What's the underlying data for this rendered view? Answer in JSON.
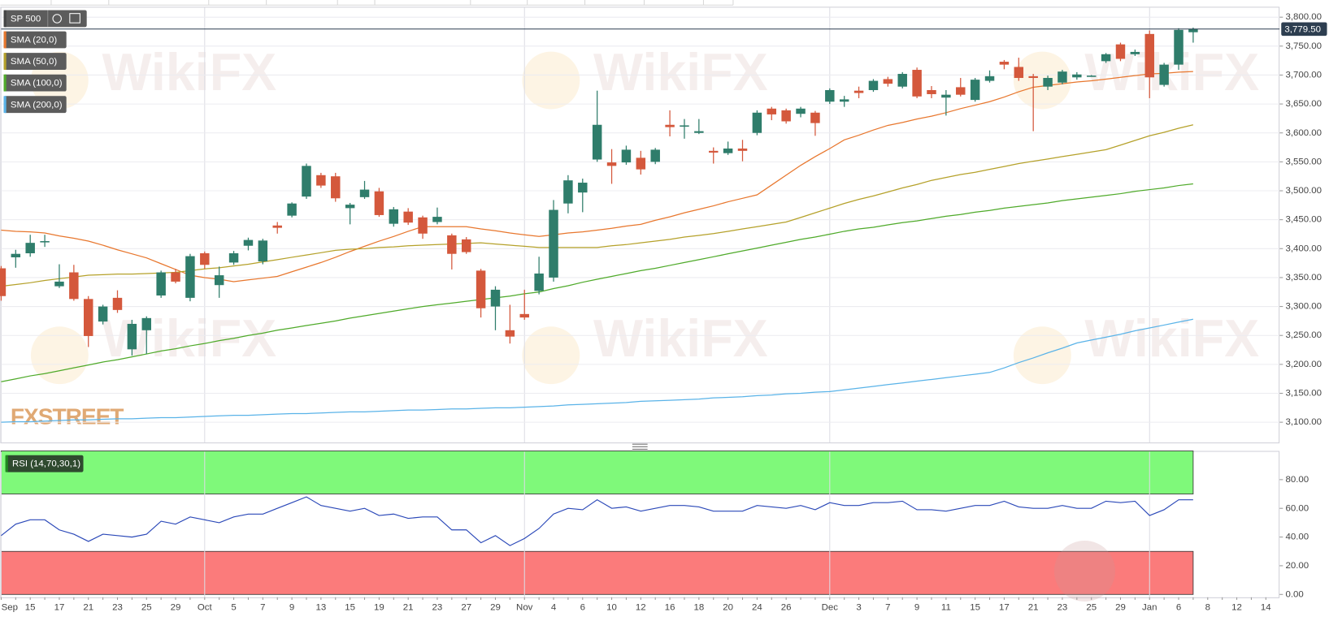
{
  "watermark": "WikiFX",
  "branding": "FXSTREET",
  "chart_data": [
    {
      "type": "candlestick",
      "title": "SP 500",
      "categories": [
        "Sep",
        null,
        "15",
        null,
        "17",
        null,
        "21",
        null,
        "23",
        null,
        "25",
        null,
        "29",
        null,
        "Oct",
        null,
        "5",
        null,
        "7",
        null,
        "9",
        null,
        "13",
        null,
        "15",
        null,
        "19",
        null,
        "21",
        null,
        "23",
        null,
        "27",
        null,
        "29",
        null,
        "Nov",
        null,
        "4",
        null,
        "6",
        null,
        "10",
        null,
        "12",
        null,
        "16",
        null,
        "18",
        null,
        "20",
        null,
        "24",
        null,
        "26",
        null,
        null,
        "Dec",
        null,
        "3",
        null,
        "7",
        null,
        "9",
        null,
        "11",
        null,
        "15",
        null,
        "17",
        null,
        "21",
        null,
        "23",
        null,
        "25",
        null,
        "29",
        null,
        "Jan",
        null,
        "6",
        null,
        "8",
        null,
        "12",
        null,
        "14"
      ],
      "open": [
        3366,
        3385,
        3392,
        3412,
        3335,
        3359,
        3313,
        3274,
        3315,
        3226,
        3259,
        3319,
        3359,
        3315,
        3392,
        3337,
        3376,
        3405,
        3378,
        3440,
        3457,
        3490,
        3527,
        3525,
        3470,
        3489,
        3499,
        3443,
        3464,
        3454,
        3446,
        3423,
        3416,
        3362,
        3300,
        3259,
        3287,
        3327,
        3350,
        3478,
        3497,
        3554,
        3549,
        3549,
        3557,
        3550,
        3614,
        3612,
        3600,
        3569,
        3565,
        3573,
        3600,
        3642,
        3639,
        3633,
        3635,
        3654,
        3654,
        3673,
        3674,
        3693,
        3680,
        3709,
        3674,
        3661,
        3679,
        3657,
        3690,
        3723,
        3714,
        3698,
        3680,
        3687,
        3696,
        3699,
        3724,
        3753,
        3736,
        3771,
        3683,
        3718,
        3774,
        null,
        null,
        null,
        null,
        null
      ],
      "high": [
        3370,
        3398,
        3424,
        3424,
        3373,
        3372,
        3318,
        3303,
        3328,
        3277,
        3283,
        3362,
        3365,
        3391,
        3395,
        3369,
        3396,
        3419,
        3417,
        3446,
        3480,
        3547,
        3531,
        3531,
        3479,
        3517,
        3505,
        3472,
        3470,
        3457,
        3471,
        3426,
        3420,
        3365,
        3335,
        3303,
        3329,
        3386,
        3484,
        3527,
        3521,
        3673,
        3572,
        3578,
        3569,
        3574,
        3639,
        3624,
        3624,
        3575,
        3585,
        3588,
        3639,
        3645,
        3642,
        3645,
        3638,
        3677,
        3664,
        3680,
        3693,
        3697,
        3705,
        3713,
        3681,
        3674,
        3695,
        3695,
        3708,
        3726,
        3730,
        3702,
        3699,
        3709,
        3705,
        3700,
        3738,
        3756,
        3744,
        3777,
        3721,
        3781,
        3782,
        null,
        null,
        null,
        null,
        null
      ],
      "low": [
        3310,
        3367,
        3386,
        3403,
        3332,
        3310,
        3230,
        3269,
        3289,
        3215,
        3218,
        3315,
        3340,
        3309,
        3365,
        3315,
        3372,
        3397,
        3373,
        3426,
        3454,
        3486,
        3505,
        3481,
        3442,
        3486,
        3455,
        3438,
        3441,
        3417,
        3442,
        3364,
        3391,
        3281,
        3259,
        3236,
        3277,
        3321,
        3343,
        3461,
        3463,
        3550,
        3512,
        3545,
        3528,
        3546,
        3594,
        3590,
        3598,
        3547,
        3562,
        3551,
        3596,
        3622,
        3616,
        3627,
        3595,
        3650,
        3645,
        3660,
        3671,
        3680,
        3677,
        3660,
        3660,
        3630,
        3663,
        3654,
        3687,
        3710,
        3690,
        3603,
        3674,
        3684,
        3692,
        3698,
        3721,
        3724,
        3733,
        3660,
        3680,
        3709,
        3756,
        null,
        null,
        null,
        null,
        null
      ],
      "close": [
        3318,
        3391,
        3410,
        3413,
        3343,
        3313,
        3249,
        3300,
        3294,
        3270,
        3280,
        3359,
        3343,
        3387,
        3372,
        3354,
        3392,
        3415,
        3414,
        3436,
        3478,
        3543,
        3509,
        3487,
        3476,
        3502,
        3458,
        3468,
        3445,
        3426,
        3455,
        3391,
        3394,
        3297,
        3329,
        3248,
        3281,
        3357,
        3467,
        3518,
        3514,
        3614,
        3543,
        3571,
        3537,
        3571,
        3610,
        3613,
        3603,
        3566,
        3573,
        3569,
        3635,
        3632,
        3620,
        3642,
        3617,
        3674,
        3658,
        3669,
        3690,
        3685,
        3702,
        3663,
        3667,
        3666,
        3666,
        3692,
        3698,
        3718,
        3695,
        3695,
        3695,
        3706,
        3701,
        3699,
        3736,
        3728,
        3740,
        3696,
        3718,
        3778,
        3779.5,
        null,
        null,
        null,
        null,
        null
      ],
      "up_color": "#2f7d6b",
      "down_color": "#d4583c",
      "overlays": [
        {
          "name": "SMA (20,0)",
          "color": "#e8772e",
          "values": [
            3432,
            3430,
            3429,
            3427,
            3422,
            3418,
            3413,
            3406,
            3398,
            3391,
            3384,
            3374,
            3364,
            3354,
            3350,
            3347,
            3343,
            3346,
            3349,
            3352,
            3360,
            3368,
            3376,
            3385,
            3395,
            3404,
            3413,
            3421,
            3430,
            3438,
            3438,
            3438,
            3438,
            3434,
            3431,
            3427,
            3424,
            3421,
            3424,
            3427,
            3429,
            3432,
            3435,
            3439,
            3442,
            3449,
            3455,
            3462,
            3468,
            3474,
            3481,
            3487,
            3493,
            3510,
            3527,
            3544,
            3559,
            3573,
            3588,
            3596,
            3605,
            3613,
            3618,
            3624,
            3629,
            3635,
            3642,
            3648,
            3654,
            3662,
            3671,
            3679,
            3682,
            3685,
            3688,
            3690,
            3693,
            3696,
            3699,
            3702,
            3703,
            3705,
            3706,
            null,
            null,
            null,
            null,
            null
          ]
        },
        {
          "name": "SMA (50,0)",
          "color": "#b5a12a",
          "values": [
            3335,
            3338,
            3341,
            3345,
            3348,
            3351,
            3354,
            3355,
            3356,
            3356,
            3357,
            3358,
            3359,
            3362,
            3365,
            3367,
            3370,
            3373,
            3377,
            3381,
            3385,
            3389,
            3393,
            3397,
            3399,
            3400,
            3402,
            3403,
            3405,
            3406,
            3407,
            3408,
            3409,
            3410,
            3408,
            3406,
            3404,
            3402,
            3402,
            3402,
            3402,
            3402,
            3405,
            3407,
            3410,
            3413,
            3416,
            3420,
            3423,
            3426,
            3430,
            3434,
            3438,
            3442,
            3446,
            3454,
            3462,
            3470,
            3478,
            3485,
            3491,
            3498,
            3505,
            3511,
            3518,
            3523,
            3528,
            3532,
            3537,
            3542,
            3547,
            3551,
            3555,
            3559,
            3563,
            3567,
            3571,
            3579,
            3587,
            3595,
            3601,
            3608,
            3614,
            null,
            null,
            null,
            null,
            null
          ]
        },
        {
          "name": "SMA (100,0)",
          "color": "#4faa2a",
          "values": [
            3170,
            3175,
            3180,
            3184,
            3189,
            3194,
            3199,
            3204,
            3208,
            3213,
            3218,
            3223,
            3227,
            3232,
            3236,
            3241,
            3245,
            3250,
            3254,
            3259,
            3263,
            3267,
            3271,
            3275,
            3280,
            3284,
            3288,
            3292,
            3296,
            3300,
            3303,
            3306,
            3309,
            3312,
            3315,
            3318,
            3322,
            3325,
            3331,
            3336,
            3342,
            3347,
            3352,
            3357,
            3362,
            3366,
            3371,
            3376,
            3381,
            3386,
            3391,
            3396,
            3401,
            3406,
            3411,
            3416,
            3420,
            3425,
            3430,
            3434,
            3437,
            3441,
            3445,
            3448,
            3452,
            3456,
            3459,
            3463,
            3466,
            3470,
            3473,
            3476,
            3479,
            3483,
            3486,
            3489,
            3492,
            3495,
            3499,
            3502,
            3505,
            3509,
            3512,
            null,
            null,
            null,
            null,
            null
          ]
        },
        {
          "name": "SMA (200,0)",
          "color": "#5ab3e8",
          "values": [
            3100,
            3101,
            3101,
            3102,
            3103,
            3104,
            3104,
            3105,
            3106,
            3106,
            3107,
            3108,
            3108,
            3109,
            3110,
            3111,
            3112,
            3112,
            3113,
            3114,
            3115,
            3115,
            3116,
            3117,
            3118,
            3118,
            3119,
            3120,
            3121,
            3121,
            3122,
            3123,
            3123,
            3124,
            3125,
            3125,
            3126,
            3127,
            3128,
            3130,
            3131,
            3132,
            3133,
            3134,
            3136,
            3137,
            3138,
            3139,
            3140,
            3142,
            3143,
            3144,
            3146,
            3147,
            3149,
            3150,
            3152,
            3153,
            3156,
            3159,
            3162,
            3165,
            3168,
            3171,
            3174,
            3177,
            3180,
            3183,
            3186,
            3194,
            3203,
            3211,
            3220,
            3228,
            3237,
            3242,
            3247,
            3252,
            3258,
            3263,
            3268,
            3273,
            3278,
            null,
            null,
            null,
            null,
            null
          ]
        }
      ],
      "last_price": {
        "value": 3779.5,
        "label": "3,779.50"
      },
      "ylim": [
        3065,
        3818
      ],
      "yticks": [
        {
          "value": 3100,
          "label": "3,100.00"
        },
        {
          "value": 3150,
          "label": "3,150.00"
        },
        {
          "value": 3200,
          "label": "3,200.00"
        },
        {
          "value": 3250,
          "label": "3,250.00"
        },
        {
          "value": 3300,
          "label": "3,300.00"
        },
        {
          "value": 3350,
          "label": "3,350.00"
        },
        {
          "value": 3400,
          "label": "3,400.00"
        },
        {
          "value": 3450,
          "label": "3,450.00"
        },
        {
          "value": 3500,
          "label": "3,500.00"
        },
        {
          "value": 3550,
          "label": "3,550.00"
        },
        {
          "value": 3600,
          "label": "3,600.00"
        },
        {
          "value": 3650,
          "label": "3,650.00"
        },
        {
          "value": 3700,
          "label": "3,700.00"
        },
        {
          "value": 3750,
          "label": "3,750.00"
        },
        {
          "value": 3800,
          "label": "3,800.00"
        }
      ],
      "grid": true
    },
    {
      "type": "line",
      "title": "RSI (14,70,30,1)",
      "color": "#2a48b8",
      "values": [
        41,
        49,
        52,
        52,
        45,
        42,
        37,
        42,
        41,
        40,
        42,
        51,
        49,
        54,
        52,
        50,
        54,
        56,
        56,
        60,
        64,
        68,
        62,
        60,
        58,
        60,
        55,
        56,
        53,
        54,
        54,
        45,
        45,
        36,
        41,
        34,
        39,
        46,
        56,
        60,
        59,
        66,
        60,
        61,
        58,
        60,
        62,
        62,
        61,
        58,
        58,
        58,
        62,
        61,
        60,
        62,
        59,
        64,
        62,
        62,
        64,
        64,
        65,
        59,
        59,
        58,
        60,
        62,
        62,
        65,
        61,
        60,
        60,
        62,
        60,
        60,
        65,
        64,
        65,
        55,
        59,
        66,
        66,
        null,
        null,
        null,
        null,
        null
      ],
      "bands": [
        {
          "from": 70,
          "to": 100,
          "color": "#7ff97a"
        },
        {
          "from": 0,
          "to": 30,
          "color": "#fb7b7b"
        }
      ],
      "ylim": [
        -2,
        100
      ],
      "yticks": [
        {
          "value": 0,
          "label": "0.00"
        },
        {
          "value": 20,
          "label": "20.00"
        },
        {
          "value": 40,
          "label": "40.00"
        },
        {
          "value": 60,
          "label": "60.00"
        },
        {
          "value": 80,
          "label": "80.00"
        }
      ]
    }
  ]
}
